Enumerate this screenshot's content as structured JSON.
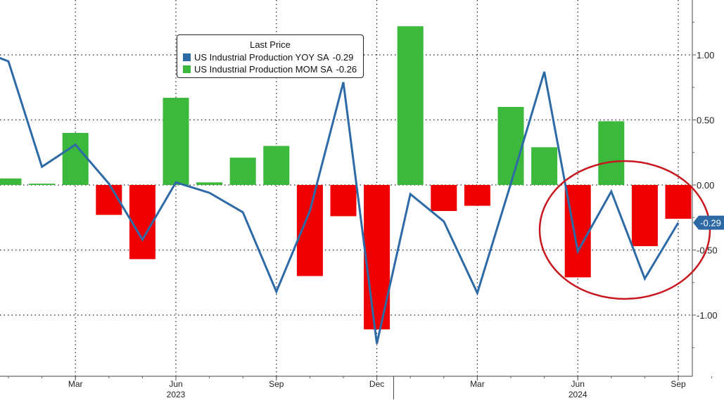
{
  "chart_data": {
    "type": "bar+line",
    "legend": {
      "title": "Last Price",
      "placement": "top-center",
      "entries": [
        {
          "label": "US Industrial Production YOY SA",
          "value": "-0.29",
          "color": "#2e6aa6"
        },
        {
          "label": "US Industrial Production MOM SA",
          "value": "-0.26",
          "color": "#3cb93c"
        }
      ]
    },
    "x_ticks": [
      "Mar",
      "Jun",
      "Sep",
      "Dec",
      "Mar",
      "Jun",
      "Sep"
    ],
    "x_years": [
      "2023",
      "2024"
    ],
    "y_ticks": [
      "1.00",
      "0.50",
      "0.00",
      "-0.50",
      "-1.00"
    ],
    "ylim": [
      -1.45,
      1.42
    ],
    "grid": true,
    "colors": {
      "positive_bar": "#3cb93c",
      "negative_bar": "#ee0000",
      "line": "#2e6aa6",
      "annotation_circle": "#c8171e",
      "last_value_tag": "#2e6aa6"
    },
    "months": [
      "2023-01",
      "2023-02",
      "2023-03",
      "2023-04",
      "2023-05",
      "2023-06",
      "2023-07",
      "2023-08",
      "2023-09",
      "2023-10",
      "2023-11",
      "2023-12",
      "2024-01",
      "2024-02",
      "2024-03",
      "2024-04",
      "2024-05",
      "2024-06",
      "2024-07",
      "2024-08",
      "2024-09",
      "2024-10"
    ],
    "series": [
      {
        "name": "US Industrial Production MOM SA",
        "type": "bar",
        "x": [
          "2023-01",
          "2023-02",
          "2023-03",
          "2023-04",
          "2023-05",
          "2023-06",
          "2023-07",
          "2023-08",
          "2023-09",
          "2023-10",
          "2023-11",
          "2023-12",
          "2024-01",
          "2024-02",
          "2024-03",
          "2024-04",
          "2024-05",
          "2024-06",
          "2024-07",
          "2024-08",
          "2024-09",
          "2024-10"
        ],
        "values": [
          0.05,
          0.01,
          0.4,
          -0.23,
          -0.57,
          0.67,
          0.02,
          0.21,
          0.3,
          -0.7,
          -0.24,
          -1.11,
          1.22,
          -0.2,
          -0.16,
          0.6,
          0.29,
          -0.71,
          0.49,
          -0.47,
          -0.26,
          null
        ]
      },
      {
        "name": "US Industrial Production YOY SA",
        "type": "line",
        "x": [
          "2022-12",
          "2023-01",
          "2023-02",
          "2023-03",
          "2023-04",
          "2023-05",
          "2023-06",
          "2023-07",
          "2023-08",
          "2023-09",
          "2023-10",
          "2023-11",
          "2023-12",
          "2024-01",
          "2024-02",
          "2024-03",
          "2024-04",
          "2024-05",
          "2024-06",
          "2024-07",
          "2024-08",
          "2024-09",
          "2024-10"
        ],
        "values": [
          1.05,
          0.95,
          0.14,
          0.31,
          0.01,
          -0.42,
          0.02,
          -0.06,
          -0.21,
          -0.82,
          -0.2,
          0.79,
          -1.22,
          -0.07,
          -0.28,
          -0.83,
          0.01,
          0.87,
          -0.51,
          -0.05,
          -0.72,
          -0.29,
          null
        ]
      }
    ],
    "last_value_label": "-0.29"
  }
}
